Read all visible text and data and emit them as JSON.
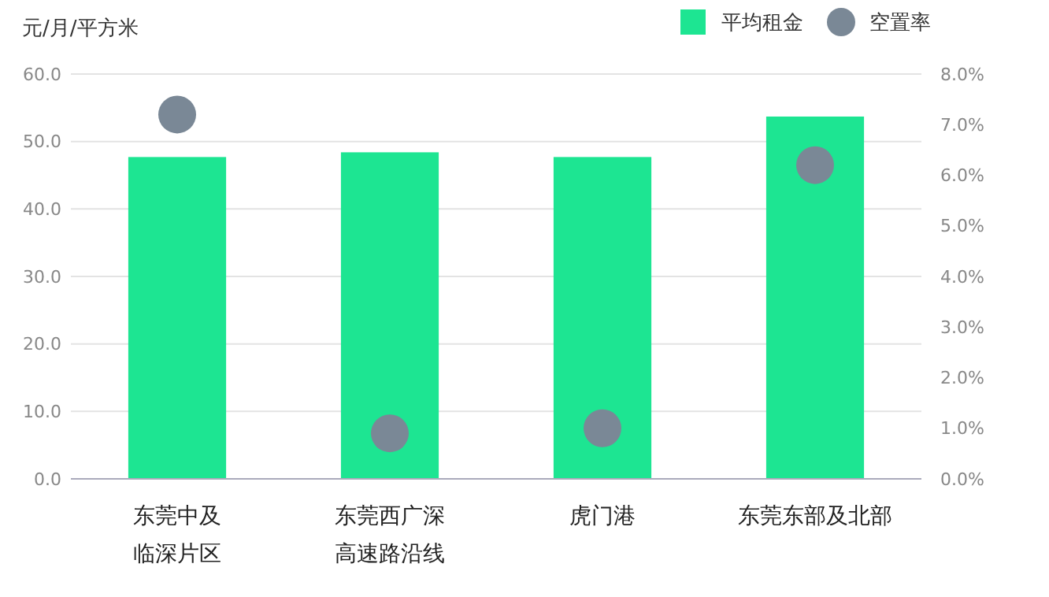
{
  "chart_data": {
    "type": "bar",
    "ylabel": "元/月/平方米",
    "categories": [
      "东莞中及临深片区",
      "东莞西广深高速路沿线",
      "虎门港",
      "东莞东部及北部"
    ],
    "series": [
      {
        "name": "平均租金",
        "color": "#1de592",
        "values": [
          47.7,
          48.4,
          47.7,
          53.7
        ]
      },
      {
        "name": "空置率",
        "type": "scatter",
        "axis": "y2",
        "color": "#7a8896",
        "marker": "circle",
        "values": [
          7.2,
          0.9,
          1.0,
          6.2
        ]
      }
    ],
    "ylim": [
      0,
      60
    ],
    "yticks": [
      {
        "value": 0,
        "label": "0.0"
      },
      {
        "value": 10,
        "label": "10.0"
      },
      {
        "value": 20,
        "label": "20.0"
      },
      {
        "value": 30,
        "label": "30.0"
      },
      {
        "value": 40,
        "label": "40.0"
      },
      {
        "value": 50,
        "label": "50.0"
      },
      {
        "value": 60,
        "label": "60.0"
      }
    ],
    "y2lim": [
      0,
      8
    ],
    "y2ticks": [
      {
        "value": 0,
        "label": "0.0%"
      },
      {
        "value": 1,
        "label": "1.0%"
      },
      {
        "value": 2,
        "label": "2.0%"
      },
      {
        "value": 3,
        "label": "3.0%"
      },
      {
        "value": 4,
        "label": "4.0%"
      },
      {
        "value": 5,
        "label": "5.0%"
      },
      {
        "value": 6,
        "label": "6.0%"
      },
      {
        "value": 7,
        "label": "7.0%"
      },
      {
        "value": 8,
        "label": "8.0%"
      }
    ],
    "grid": "y",
    "legend": "top right"
  }
}
